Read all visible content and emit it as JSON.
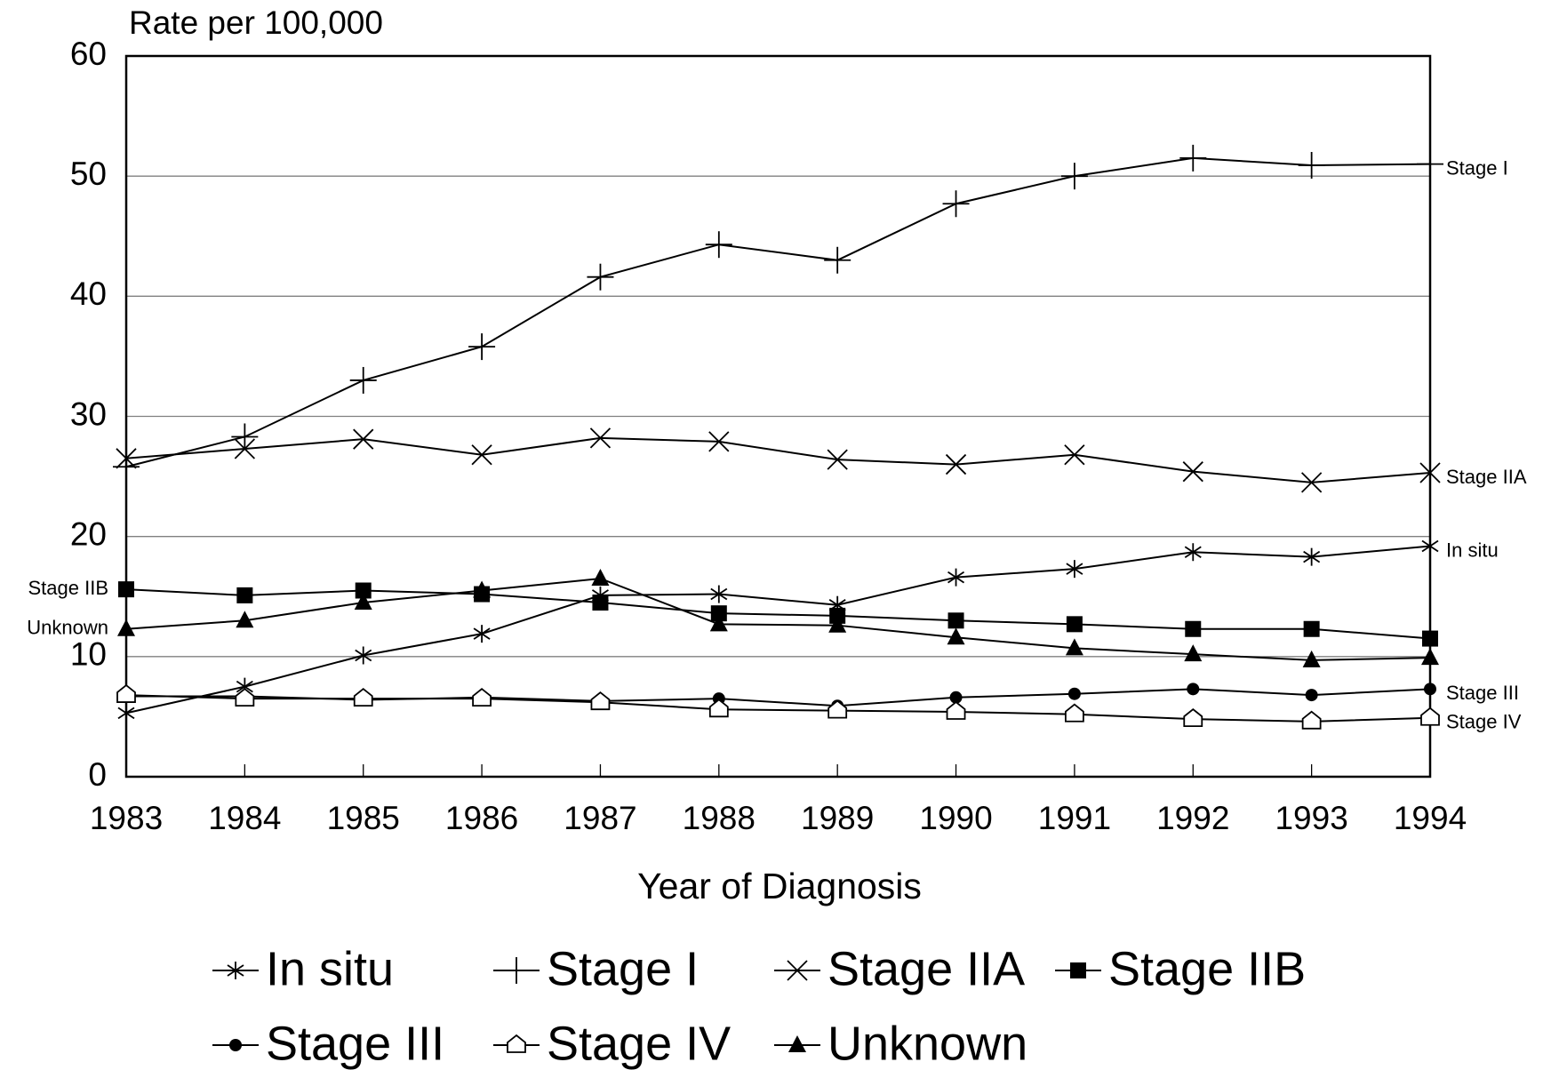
{
  "chart_data": {
    "type": "line",
    "y_axis_label": "Rate per 100,000",
    "x_axis_label": "Year of Diagnosis",
    "x": [
      1983,
      1984,
      1985,
      1986,
      1987,
      1988,
      1989,
      1990,
      1991,
      1992,
      1993,
      1994
    ],
    "xlim": [
      1983,
      1994
    ],
    "xticks": [
      1983,
      1984,
      1985,
      1986,
      1987,
      1988,
      1989,
      1990,
      1991,
      1992,
      1993,
      1994
    ],
    "ylim": [
      0,
      60
    ],
    "yticks": [
      0,
      10,
      20,
      30,
      40,
      50,
      60
    ],
    "grid": true,
    "series": [
      {
        "name": "In situ",
        "color": "#000000",
        "marker": "star",
        "annotation_side": "right",
        "values": [
          5.3,
          7.5,
          10.1,
          11.9,
          15.1,
          15.2,
          14.3,
          16.6,
          17.3,
          18.7,
          18.3,
          19.2
        ]
      },
      {
        "name": "Stage I",
        "color": "#000000",
        "marker": "plus",
        "annotation_side": "right",
        "values": [
          25.8,
          28.3,
          33.0,
          35.8,
          41.6,
          44.3,
          43.0,
          47.7,
          50.0,
          51.5,
          50.9,
          51.0
        ]
      },
      {
        "name": "Stage IIA",
        "color": "#000000",
        "marker": "cross",
        "annotation_side": "right",
        "values": [
          26.5,
          27.3,
          28.1,
          26.8,
          28.2,
          27.9,
          26.4,
          26.0,
          26.8,
          25.4,
          24.5,
          25.3
        ]
      },
      {
        "name": "Stage IIB",
        "color": "#000000",
        "marker": "square",
        "annotation_side": "left",
        "values": [
          15.6,
          15.1,
          15.5,
          15.2,
          14.5,
          13.6,
          13.4,
          13.0,
          12.7,
          12.3,
          12.3,
          11.5
        ]
      },
      {
        "name": "Stage III",
        "color": "#000000",
        "marker": "circle",
        "annotation_side": "right",
        "values": [
          6.7,
          6.7,
          6.4,
          6.6,
          6.3,
          6.5,
          5.9,
          6.6,
          6.9,
          7.3,
          6.8,
          7.3
        ]
      },
      {
        "name": "Stage IV",
        "color": "#000000",
        "marker": "house",
        "annotation_side": "right",
        "values": [
          6.8,
          6.5,
          6.5,
          6.5,
          6.2,
          5.6,
          5.5,
          5.4,
          5.2,
          4.8,
          4.6,
          4.9
        ]
      },
      {
        "name": "Unknown",
        "color": "#000000",
        "marker": "triangle",
        "annotation_side": "left",
        "values": [
          12.3,
          13.0,
          14.5,
          15.5,
          16.5,
          12.7,
          12.6,
          11.6,
          10.7,
          10.2,
          9.7,
          9.9
        ]
      }
    ]
  }
}
